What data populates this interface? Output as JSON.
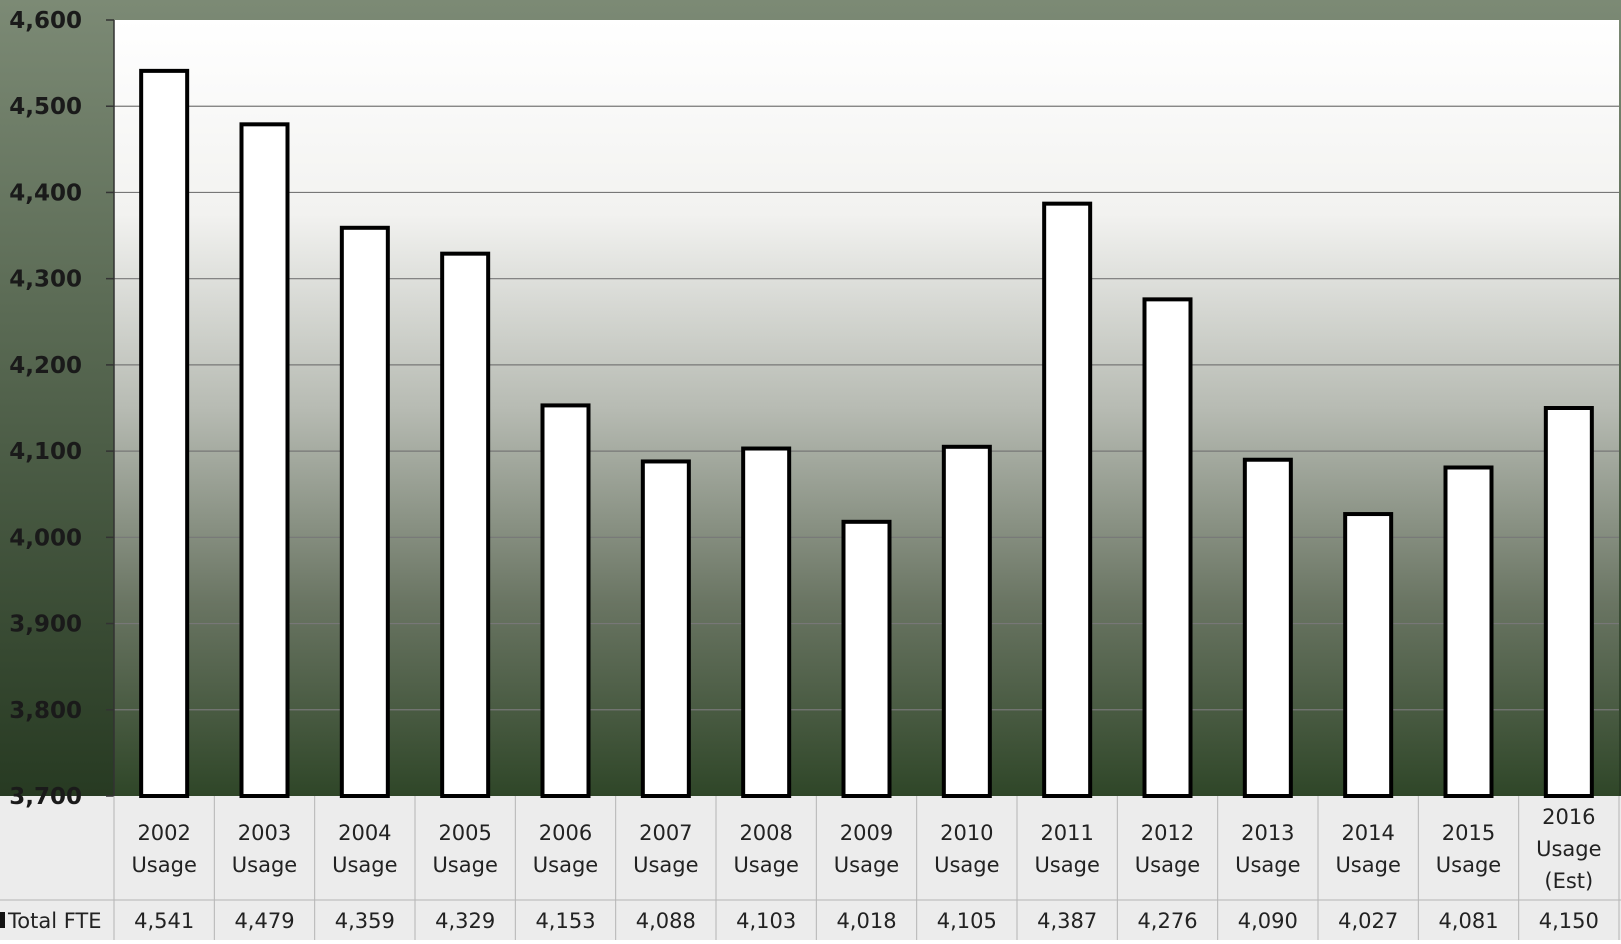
{
  "chart_data": {
    "type": "bar",
    "categories": [
      "2002 Usage",
      "2003 Usage",
      "2004 Usage",
      "2005 Usage",
      "2006 Usage",
      "2007 Usage",
      "2008 Usage",
      "2009 Usage",
      "2010 Usage",
      "2011 Usage",
      "2012 Usage",
      "2013 Usage",
      "2014 Usage",
      "2015 Usage",
      "2016 Usage (Est)"
    ],
    "series": [
      {
        "name": "Total FTE",
        "values": [
          4541,
          4479,
          4359,
          4329,
          4153,
          4088,
          4103,
          4018,
          4105,
          4387,
          4276,
          4090,
          4027,
          4081,
          4150
        ],
        "value_labels": [
          "4,541",
          "4,479",
          "4,359",
          "4,329",
          "4,153",
          "4,088",
          "4,103",
          "4,018",
          "4,105",
          "4,387",
          "4,276",
          "4,090",
          "4,027",
          "4,081",
          "4,150"
        ]
      }
    ],
    "ylim": [
      3700,
      4600
    ],
    "yticks": [
      3700,
      3800,
      3900,
      4000,
      4100,
      4200,
      4300,
      4400,
      4500,
      4600
    ],
    "ytick_labels": [
      "3,700",
      "3,800",
      "3,900",
      "4,000",
      "4,100",
      "4,200",
      "4,300",
      "4,400",
      "4,500",
      "4,600"
    ],
    "grid": true,
    "data_table": true,
    "colors": {
      "bar_fill": "#ffffff",
      "bar_stroke": "#000000",
      "plot_gradient_top": "#ffffff",
      "plot_gradient_bottom": "#2f4628",
      "frame_top": "#7c8a75",
      "frame_bottom": "#273a22",
      "gridline": "#777777",
      "table_background": "#ececec"
    }
  }
}
